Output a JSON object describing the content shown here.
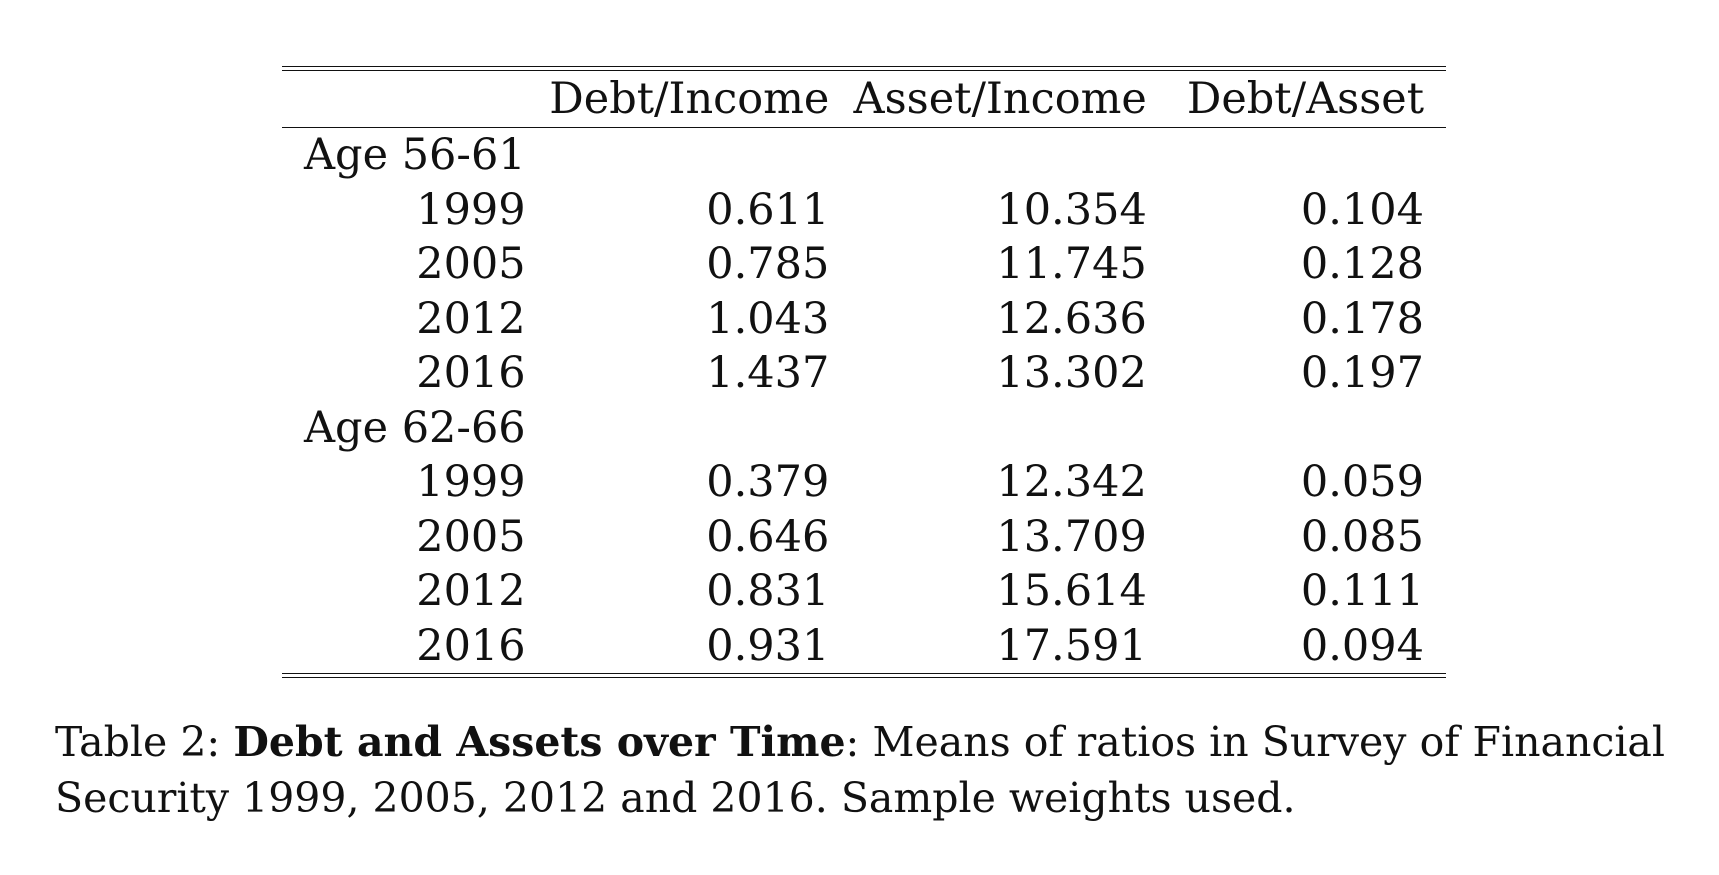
{
  "table": {
    "columns": [
      "",
      "Debt/Income",
      "Asset/Income",
      "Debt/Asset"
    ],
    "groups": [
      {
        "label": "Age 56-61",
        "rows": [
          {
            "year": "1999",
            "debt_income": "0.611",
            "asset_income": "10.354",
            "debt_asset": "0.104"
          },
          {
            "year": "2005",
            "debt_income": "0.785",
            "asset_income": "11.745",
            "debt_asset": "0.128"
          },
          {
            "year": "2012",
            "debt_income": "1.043",
            "asset_income": "12.636",
            "debt_asset": "0.178"
          },
          {
            "year": "2016",
            "debt_income": "1.437",
            "asset_income": "13.302",
            "debt_asset": "0.197"
          }
        ]
      },
      {
        "label": "Age 62-66",
        "rows": [
          {
            "year": "1999",
            "debt_income": "0.379",
            "asset_income": "12.342",
            "debt_asset": "0.059"
          },
          {
            "year": "2005",
            "debt_income": "0.646",
            "asset_income": "13.709",
            "debt_asset": "0.085"
          },
          {
            "year": "2012",
            "debt_income": "0.831",
            "asset_income": "15.614",
            "debt_asset": "0.111"
          },
          {
            "year": "2016",
            "debt_income": "0.931",
            "asset_income": "17.591",
            "debt_asset": "0.094"
          }
        ]
      }
    ]
  },
  "caption": {
    "label": "Table 2: ",
    "title": "Debt and Assets over Time",
    "text": ": Means of ratios in Survey of Financial Security 1999, 2005, 2012 and 2016. Sample weights used."
  }
}
